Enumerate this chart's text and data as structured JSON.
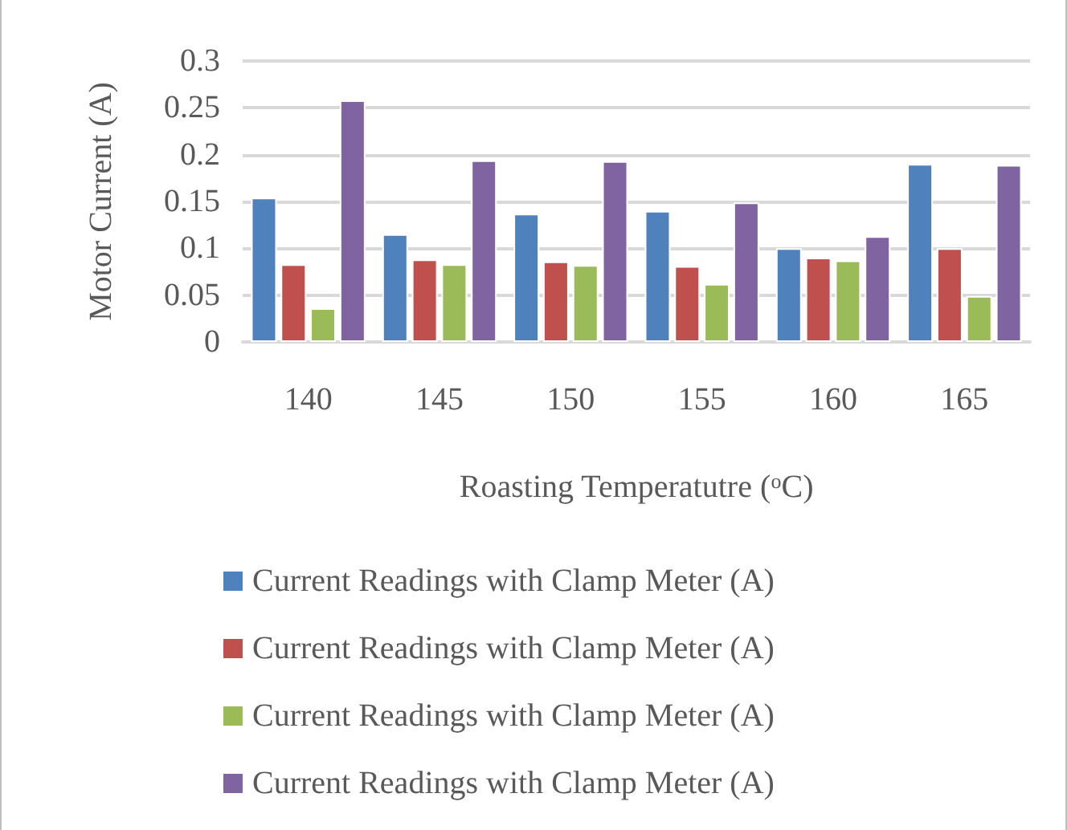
{
  "chart_data": {
    "type": "bar",
    "xlabel": "Roasting Temperatutre ($^{o}$C)",
    "ylabel": "Motor Current (A)",
    "categories": [
      "140",
      "145",
      "150",
      "155",
      "160",
      "165"
    ],
    "series": [
      {
        "name": "Current Readings with Clamp Meter (A)",
        "color": "#4f81bd",
        "values": [
          0.154,
          0.115,
          0.137,
          0.14,
          0.1,
          0.19
        ]
      },
      {
        "name": "Current Readings with Clamp Meter (A)",
        "color": "#c0504d",
        "values": [
          0.083,
          0.088,
          0.086,
          0.081,
          0.09,
          0.1
        ]
      },
      {
        "name": "Current Readings with Clamp Meter (A)",
        "color": "#9bbb59",
        "values": [
          0.036,
          0.083,
          0.082,
          0.062,
          0.087,
          0.049
        ]
      },
      {
        "name": "Current Readings with Clamp Meter (A)",
        "color": "#8064a2",
        "values": [
          0.258,
          0.194,
          0.193,
          0.149,
          0.113,
          0.189
        ]
      }
    ],
    "ylim": [
      0,
      0.3
    ],
    "yticks": [
      0,
      0.05,
      0.1,
      0.15,
      0.2,
      0.25,
      0.3
    ],
    "grid": "y",
    "legend": "bottom"
  }
}
